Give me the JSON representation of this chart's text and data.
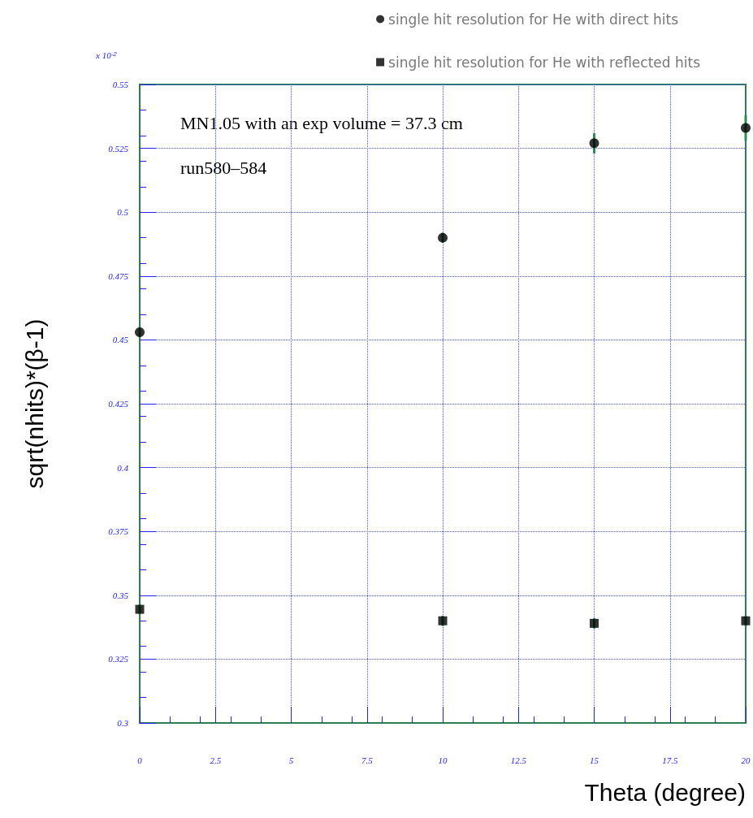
{
  "chart_data": {
    "type": "scatter",
    "xlabel": "Theta (degree)",
    "ylabel": "sqrt(nhits)*(β-1)",
    "x": [
      0,
      10,
      15,
      20
    ],
    "series": [
      {
        "name": "single hit resolution for He with direct hits",
        "color": "#000000",
        "marker": "circle",
        "values": [
          0.453,
          0.49,
          0.527,
          0.533
        ],
        "errors": [
          0.002,
          0.002,
          0.004,
          0.005
        ]
      },
      {
        "name": "single hit resolution for He with reflected hits",
        "color": "#000000",
        "marker": "square",
        "values": [
          0.3445,
          0.34,
          0.339,
          0.34
        ],
        "errors": [
          0.002,
          0.002,
          0.002,
          0.002
        ]
      }
    ],
    "xlim": [
      0,
      20
    ],
    "xticks": [
      0,
      2.5,
      5,
      7.5,
      10,
      12.5,
      15,
      17.5,
      20
    ],
    "ylim": [
      0.3,
      0.55
    ],
    "yticks": [
      0.3,
      0.325,
      0.35,
      0.375,
      0.4,
      0.425,
      0.45,
      0.475,
      0.5,
      0.525,
      0.55
    ],
    "grid": true,
    "legend": "top right",
    "annotations": [
      "x 10$^{-2}$",
      "MN1.05 with an exp volume = 37.3 cm",
      "run580–584"
    ]
  }
}
